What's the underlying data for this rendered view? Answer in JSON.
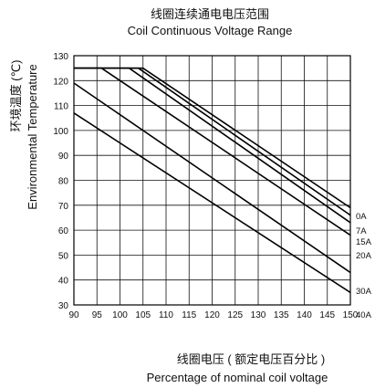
{
  "chart_data": {
    "type": "line",
    "title_cn": "线圈连续通电电压范围",
    "title_en": "Coil Continuous Voltage Range",
    "xlabel_cn": "线圈电压 ( 额定电压百分比 )",
    "xlabel_en": "Percentage of nominal coil voltage",
    "ylabel_cn": "环境温度 (℃)",
    "ylabel_en": "Environmental Temperature",
    "xlim": [
      90,
      150
    ],
    "ylim": [
      30,
      130
    ],
    "x_ticks": [
      90,
      95,
      100,
      105,
      110,
      115,
      120,
      125,
      130,
      135,
      140,
      145,
      150
    ],
    "y_ticks": [
      30,
      40,
      50,
      60,
      70,
      80,
      90,
      100,
      110,
      120,
      130
    ],
    "grid": true,
    "series": [
      {
        "name": "0A",
        "points": [
          [
            90,
            125
          ],
          [
            105,
            125
          ],
          [
            150,
            69
          ]
        ]
      },
      {
        "name": "7A",
        "points": [
          [
            90,
            125
          ],
          [
            104,
            125
          ],
          [
            150,
            66
          ]
        ]
      },
      {
        "name": "15A",
        "points": [
          [
            90,
            125
          ],
          [
            102,
            125
          ],
          [
            150,
            63
          ]
        ]
      },
      {
        "name": "20A",
        "points": [
          [
            90,
            125
          ],
          [
            96,
            125
          ],
          [
            150,
            58
          ]
        ]
      },
      {
        "name": "30A",
        "points": [
          [
            90,
            119
          ],
          [
            150,
            43
          ]
        ]
      },
      {
        "name": "40A",
        "points": [
          [
            90,
            107
          ],
          [
            150,
            35
          ]
        ]
      }
    ]
  }
}
